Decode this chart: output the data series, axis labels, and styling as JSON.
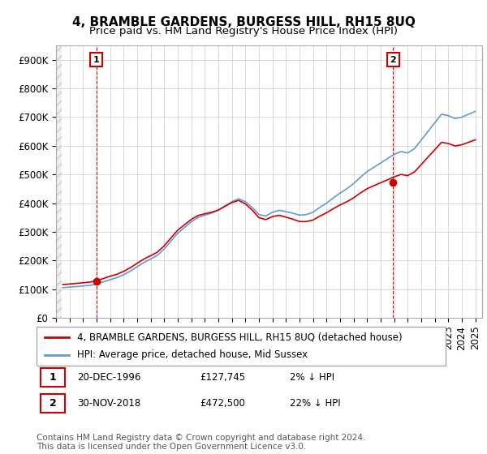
{
  "title": "4, BRAMBLE GARDENS, BURGESS HILL, RH15 8UQ",
  "subtitle": "Price paid vs. HM Land Registry's House Price Index (HPI)",
  "ylabel_ticks": [
    "£0",
    "£100K",
    "£200K",
    "£300K",
    "£400K",
    "£500K",
    "£600K",
    "£700K",
    "£800K",
    "£900K"
  ],
  "ytick_values": [
    0,
    100000,
    200000,
    300000,
    400000,
    500000,
    600000,
    700000,
    800000,
    900000
  ],
  "ylim": [
    0,
    950000
  ],
  "sale1": {
    "date_num": 1996.97,
    "price": 127745,
    "label": "1",
    "info": "20-DEC-1996  £127,745  2% ↓ HPI"
  },
  "sale2": {
    "date_num": 2018.92,
    "price": 472500,
    "label": "2",
    "info": "30-NOV-2018  £472,500  22% ↓ HPI"
  },
  "legend_line1": "4, BRAMBLE GARDENS, BURGESS HILL, RH15 8UQ (detached house)",
  "legend_line2": "HPI: Average price, detached house, Mid Sussex",
  "footnote": "Contains HM Land Registry data © Crown copyright and database right 2024.\nThis data is licensed under the Open Government Licence v3.0.",
  "price_color": "#cc0000",
  "hpi_color": "#6699cc",
  "background_color": "#ffffff",
  "plot_bg_color": "#ffffff",
  "grid_color": "#cccccc",
  "hatch_color": "#dddddd",
  "vline_color": "#cc0000",
  "title_fontsize": 11,
  "subtitle_fontsize": 9.5,
  "tick_fontsize": 8.5,
  "legend_fontsize": 8.5,
  "footnote_fontsize": 7.5
}
